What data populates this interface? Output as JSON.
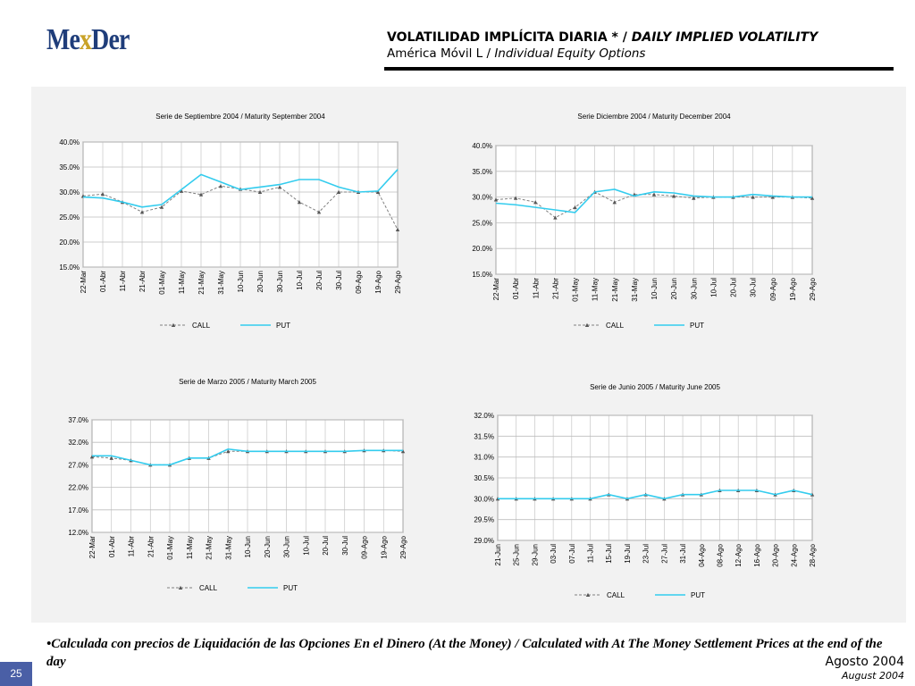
{
  "logo": {
    "prefix": "Me",
    "x": "x",
    "suffix": "Der"
  },
  "header": {
    "title_es": "VOLATILIDAD IMPLÍCITA DIARIA * / ",
    "title_en": "DAILY IMPLIED VOLATILITY",
    "subtitle_es": "América Móvil L / ",
    "subtitle_en": "Individual Equity Options"
  },
  "footer": {
    "note": "•Calculada con precios de Liquidación de las Opciones En el Dinero (At the Money) / Calculated with At The Money Settlement Prices at the end of the day",
    "slide_number": "25",
    "date_es": "Agosto 2004",
    "date_en": "August 2004"
  },
  "colors": {
    "call": "#808080",
    "put": "#33ccee",
    "panel": "#f2f2f2",
    "grid": "#bdbdbd"
  },
  "chart_data": [
    {
      "type": "line",
      "title": "Serie de Septiembre 2004 / Maturity September 2004",
      "categories": [
        "22-Mar",
        "01-Abr",
        "11-Abr",
        "21-Abr",
        "01-May",
        "11-May",
        "21-May",
        "31-May",
        "10-Jun",
        "20-Jun",
        "30-Jun",
        "10-Jul",
        "20-Jul",
        "30-Jul",
        "09-Ago",
        "19-Ago",
        "29-Ago"
      ],
      "y_ticks": [
        "15.0%",
        "20.0%",
        "25.0%",
        "30.0%",
        "35.0%",
        "40.0%"
      ],
      "ylim": [
        15,
        40
      ],
      "series": [
        {
          "name": "CALL",
          "values": [
            29.2,
            29.6,
            28.0,
            26.0,
            27.0,
            30.2,
            29.5,
            31.2,
            30.6,
            30.0,
            31.0,
            28.0,
            26.0,
            30.0,
            30.0,
            30.0,
            22.5
          ]
        },
        {
          "name": "PUT",
          "values": [
            29.0,
            28.8,
            28.0,
            27.0,
            27.5,
            30.5,
            33.5,
            32.0,
            30.5,
            31.0,
            31.5,
            32.5,
            32.5,
            31.0,
            30.0,
            30.2,
            34.5
          ]
        }
      ],
      "legend": "bottom",
      "grid": true
    },
    {
      "type": "line",
      "title": "Serie Diciembre 2004 / Maturity December 2004",
      "categories": [
        "22-Mar",
        "01-Abr",
        "11-Abr",
        "21-Abr",
        "01-May",
        "11-May",
        "21-May",
        "31-May",
        "10-Jun",
        "20-Jun",
        "30-Jun",
        "10-Jul",
        "20-Jul",
        "30-Jul",
        "09-Ago",
        "19-Ago",
        "29-Ago"
      ],
      "y_ticks": [
        "15.0%",
        "20.0%",
        "25.0%",
        "30.0%",
        "35.0%",
        "40.0%"
      ],
      "ylim": [
        15,
        40
      ],
      "series": [
        {
          "name": "CALL",
          "values": [
            29.5,
            29.8,
            29.0,
            26.0,
            28.0,
            31.0,
            29.0,
            30.5,
            30.5,
            30.2,
            29.8,
            30.0,
            30.0,
            30.0,
            30.0,
            30.0,
            29.8
          ]
        },
        {
          "name": "PUT",
          "values": [
            28.8,
            28.5,
            28.0,
            27.5,
            27.0,
            31.0,
            31.5,
            30.2,
            31.0,
            30.8,
            30.2,
            30.0,
            30.0,
            30.5,
            30.2,
            30.0,
            30.0
          ]
        }
      ],
      "legend": "bottom",
      "grid": true
    },
    {
      "type": "line",
      "title": "Serie de Marzo 2005 / Maturity March 2005",
      "categories": [
        "22-Mar",
        "01-Abr",
        "11-Abr",
        "21-Abr",
        "01-May",
        "11-May",
        "21-May",
        "31-May",
        "10-Jun",
        "20-Jun",
        "30-Jun",
        "10-Jul",
        "20-Jul",
        "30-Jul",
        "09-Ago",
        "19-Ago",
        "29-Ago"
      ],
      "y_ticks": [
        "12.0%",
        "17.0%",
        "22.0%",
        "27.0%",
        "32.0%",
        "37.0%"
      ],
      "ylim": [
        12,
        37
      ],
      "series": [
        {
          "name": "CALL",
          "values": [
            28.8,
            28.5,
            28.0,
            27.0,
            27.0,
            28.5,
            28.5,
            30.0,
            30.0,
            30.0,
            30.0,
            30.0,
            30.0,
            30.0,
            30.2,
            30.2,
            30.0
          ]
        },
        {
          "name": "PUT",
          "values": [
            29.0,
            29.0,
            28.0,
            27.0,
            27.0,
            28.5,
            28.5,
            30.5,
            30.0,
            30.0,
            30.0,
            30.0,
            30.0,
            30.0,
            30.2,
            30.2,
            30.2
          ]
        }
      ],
      "legend": "bottom",
      "grid": true
    },
    {
      "type": "line",
      "title": "Serie de Junio 2005 / Maturity June 2005",
      "categories": [
        "21-Jun",
        "25-Jun",
        "29-Jun",
        "03-Jul",
        "07-Jul",
        "11-Jul",
        "15-Jul",
        "19-Jul",
        "23-Jul",
        "27-Jul",
        "31-Jul",
        "04-Ago",
        "08-Ago",
        "12-Ago",
        "16-Ago",
        "20-Ago",
        "24-Ago",
        "28-Ago"
      ],
      "y_ticks": [
        "29.0%",
        "29.5%",
        "30.0%",
        "30.5%",
        "31.0%",
        "31.5%",
        "32.0%"
      ],
      "ylim": [
        29,
        32
      ],
      "series": [
        {
          "name": "CALL",
          "values": [
            30.0,
            30.0,
            30.0,
            30.0,
            30.0,
            30.0,
            30.1,
            30.0,
            30.1,
            30.0,
            30.1,
            30.1,
            30.2,
            30.2,
            30.2,
            30.1,
            30.2,
            30.1
          ]
        },
        {
          "name": "PUT",
          "values": [
            30.0,
            30.0,
            30.0,
            30.0,
            30.0,
            30.0,
            30.1,
            30.0,
            30.1,
            30.0,
            30.1,
            30.1,
            30.2,
            30.2,
            30.2,
            30.1,
            30.2,
            30.1
          ]
        }
      ],
      "legend": "bottom",
      "grid": true
    }
  ]
}
